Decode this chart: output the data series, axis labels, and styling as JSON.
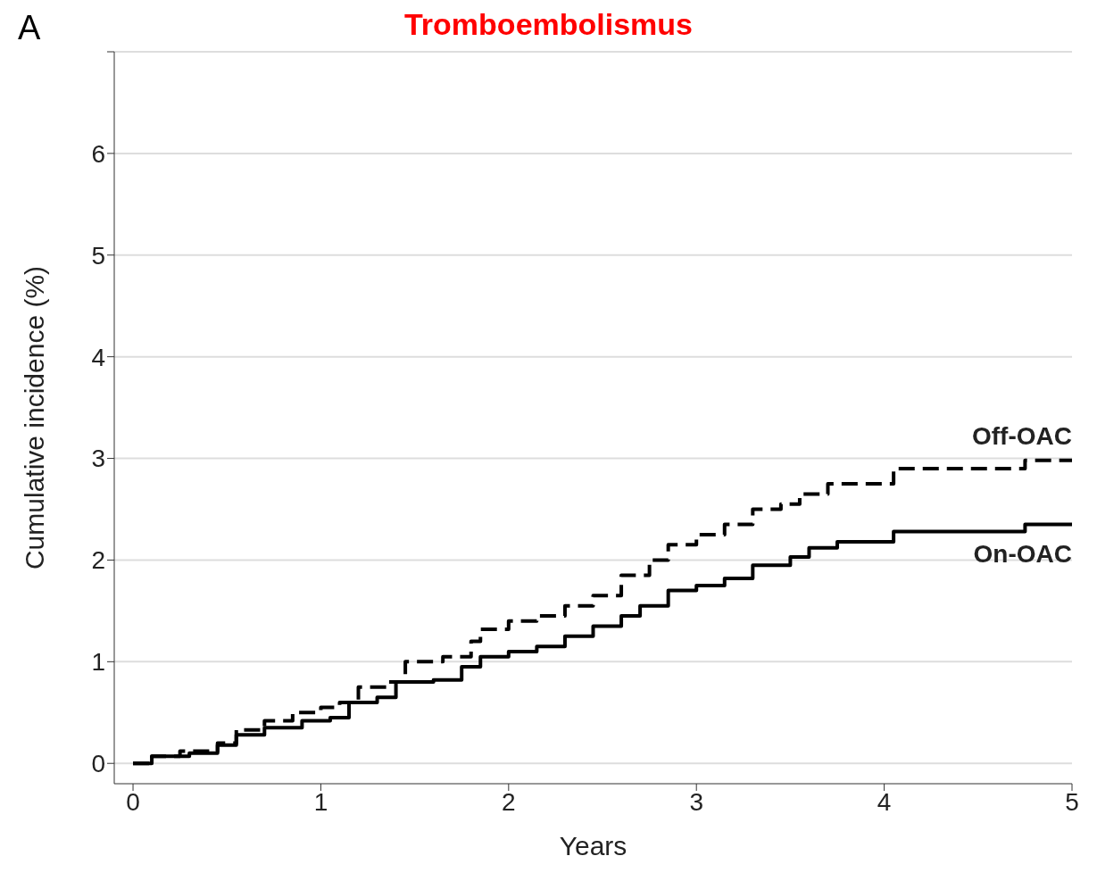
{
  "chart_data": {
    "type": "step",
    "title": "Tromboembolismus",
    "xlabel": "Years",
    "ylabel": "Cumulative incidence (%)",
    "annotations": [
      "A"
    ],
    "xlim": [
      -0.1,
      5
    ],
    "xticks": [
      0,
      1,
      2,
      3,
      4,
      5
    ],
    "ylim": [
      -0.2,
      7
    ],
    "yticks": [
      0,
      1,
      2,
      3,
      4,
      5,
      6,
      {
        "value": 7,
        "label": null
      }
    ],
    "grid": "y",
    "legend": false,
    "marker": "none",
    "series": [
      {
        "name": "Off-OAC",
        "color": "#000000",
        "line_style": "dashed",
        "x": [
          0,
          0.1,
          0.25,
          0.45,
          0.55,
          0.7,
          0.85,
          1.0,
          1.1,
          1.2,
          1.35,
          1.45,
          1.65,
          1.8,
          1.85,
          2.0,
          2.15,
          2.3,
          2.45,
          2.6,
          2.75,
          2.85,
          3.0,
          3.15,
          3.3,
          3.45,
          3.55,
          3.7,
          4.05,
          4.75,
          5.0
        ],
        "values": [
          0,
          0.07,
          0.12,
          0.2,
          0.33,
          0.42,
          0.5,
          0.55,
          0.6,
          0.75,
          0.8,
          1.0,
          1.05,
          1.2,
          1.32,
          1.4,
          1.45,
          1.55,
          1.65,
          1.85,
          2.0,
          2.15,
          2.25,
          2.35,
          2.5,
          2.55,
          2.65,
          2.75,
          2.9,
          2.98,
          2.98
        ]
      },
      {
        "name": "On-OAC",
        "color": "#000000",
        "line_style": "solid",
        "x": [
          0,
          0.1,
          0.3,
          0.45,
          0.55,
          0.7,
          0.9,
          1.05,
          1.15,
          1.3,
          1.4,
          1.6,
          1.75,
          1.85,
          2.0,
          2.15,
          2.3,
          2.45,
          2.6,
          2.7,
          2.85,
          3.0,
          3.15,
          3.3,
          3.5,
          3.6,
          3.75,
          4.05,
          4.75,
          5.0
        ],
        "values": [
          0,
          0.07,
          0.1,
          0.18,
          0.28,
          0.35,
          0.42,
          0.45,
          0.6,
          0.65,
          0.8,
          0.82,
          0.95,
          1.05,
          1.1,
          1.15,
          1.25,
          1.35,
          1.45,
          1.55,
          1.7,
          1.75,
          1.82,
          1.95,
          2.03,
          2.12,
          2.18,
          2.28,
          2.35,
          2.35
        ]
      }
    ]
  }
}
